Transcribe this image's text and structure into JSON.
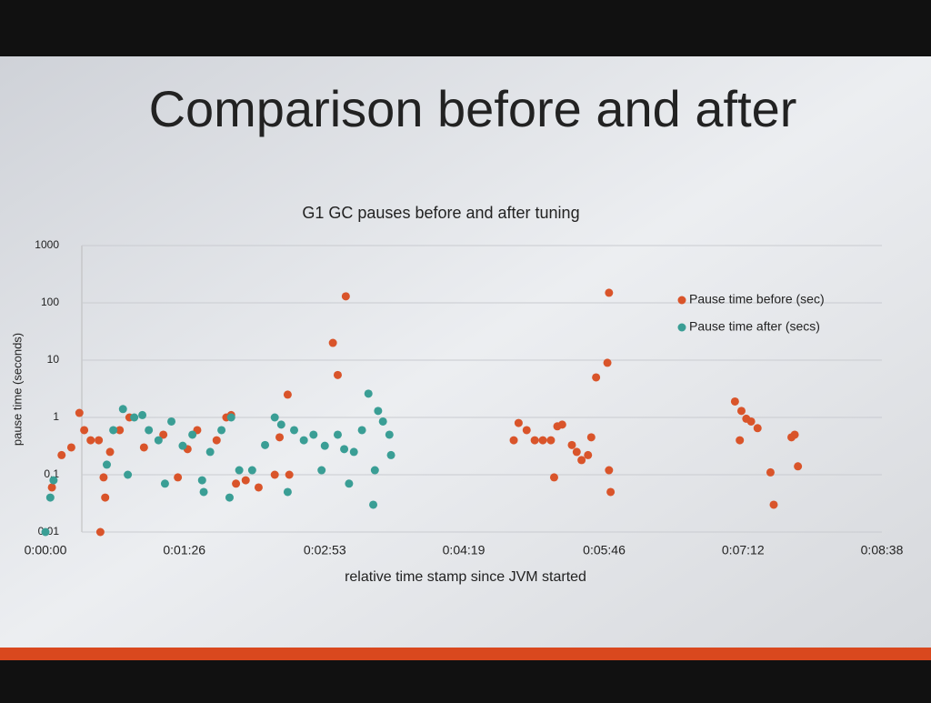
{
  "chart_data": {
    "type": "scatter",
    "slide_title": "Comparison before and after",
    "title": "G1 GC pauses before and after tuning",
    "xlabel": "relative time stamp since JVM started",
    "ylabel": "pause time (seconds)",
    "xlim": [
      0,
      518
    ],
    "xticks": [
      {
        "value": 0,
        "label": "0:00:00"
      },
      {
        "value": 86,
        "label": "0:01:26"
      },
      {
        "value": 173,
        "label": "0:02:53"
      },
      {
        "value": 259,
        "label": "0:04:19"
      },
      {
        "value": 346,
        "label": "0:05:46"
      },
      {
        "value": 432,
        "label": "0:07:12"
      },
      {
        "value": 518,
        "label": "0:08:38"
      }
    ],
    "ylim": [
      0.01,
      1000
    ],
    "yticks": [
      0.01,
      0.1,
      1,
      10,
      100,
      1000
    ],
    "log_y": true,
    "grid": true,
    "legend": "upper right",
    "series": [
      {
        "name": "Pause time before (sec)",
        "color": "#d9542a",
        "x": [
          4,
          10,
          16,
          21,
          24,
          28,
          33,
          34,
          36,
          37,
          40,
          46,
          52,
          61,
          73,
          82,
          88,
          94,
          106,
          112,
          115,
          118,
          124,
          132,
          142,
          145,
          150,
          151,
          178,
          181,
          186,
          290,
          293,
          298,
          303,
          308,
          313,
          315,
          317,
          320,
          326,
          329,
          332,
          336,
          338,
          341,
          348,
          349,
          349,
          350,
          427,
          430,
          431,
          434,
          437,
          441,
          449,
          451,
          462,
          464,
          466
        ],
        "values": [
          0.06,
          0.22,
          0.3,
          1.2,
          0.6,
          0.4,
          0.4,
          0.01,
          0.09,
          0.04,
          0.25,
          0.6,
          1,
          0.3,
          0.5,
          0.09,
          0.28,
          0.6,
          0.4,
          1,
          1.1,
          0.07,
          0.08,
          0.06,
          0.1,
          0.45,
          2.5,
          0.1,
          20,
          5.5,
          130,
          0.4,
          0.8,
          0.6,
          0.4,
          0.4,
          0.4,
          0.09,
          0.7,
          0.75,
          0.33,
          0.25,
          0.18,
          0.22,
          0.45,
          5,
          9,
          150,
          0.12,
          0.05,
          1.9,
          0.4,
          1.3,
          0.95,
          0.85,
          0.65,
          0.11,
          0.03,
          0.45,
          0.5,
          0.14
        ]
      },
      {
        "name": "Pause time after (secs)",
        "color": "#3a9e95",
        "x": [
          0,
          3,
          5,
          38,
          42,
          48,
          51,
          55,
          60,
          64,
          70,
          74,
          78,
          85,
          91,
          97,
          98,
          102,
          109,
          114,
          115,
          120,
          128,
          136,
          142,
          146,
          150,
          154,
          160,
          166,
          171,
          173,
          181,
          185,
          188,
          191,
          196,
          200,
          203,
          204,
          206,
          209,
          213,
          214
        ],
        "values": [
          0.01,
          0.04,
          0.08,
          0.15,
          0.6,
          1.4,
          0.1,
          1,
          1.1,
          0.6,
          0.4,
          0.07,
          0.85,
          0.32,
          0.5,
          0.08,
          0.05,
          0.25,
          0.6,
          0.04,
          1,
          0.12,
          0.12,
          0.33,
          1,
          0.75,
          0.05,
          0.6,
          0.4,
          0.5,
          0.12,
          0.32,
          0.5,
          0.28,
          0.07,
          0.25,
          0.6,
          2.6,
          0.03,
          0.12,
          1.3,
          0.85,
          0.5,
          0.22
        ]
      }
    ]
  }
}
